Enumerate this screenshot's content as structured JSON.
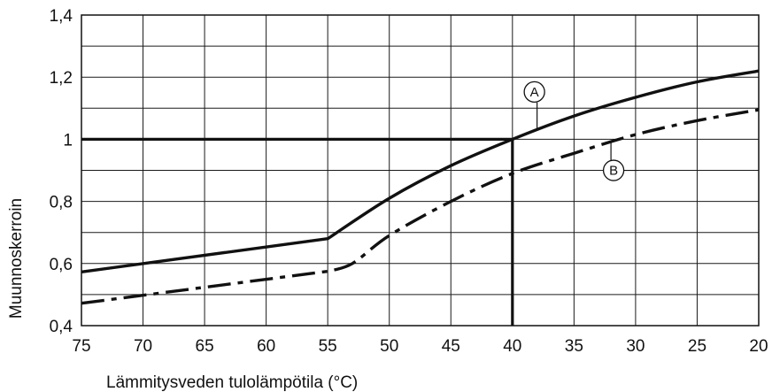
{
  "chart_data": {
    "type": "line",
    "xlabel": "Lämmitysveden tulolämpötila (°C)",
    "ylabel": "Muunnoskerroin",
    "xlim": [
      75,
      20
    ],
    "ylim": [
      0.4,
      1.4
    ],
    "x_ticks": [
      75,
      70,
      65,
      60,
      55,
      50,
      45,
      40,
      35,
      30,
      25,
      20
    ],
    "y_ticks": [
      0.4,
      0.6,
      0.8,
      1.0,
      1.2,
      1.4
    ],
    "x_tick_labels": [
      "75",
      "70",
      "65",
      "60",
      "55",
      "50",
      "45",
      "40",
      "35",
      "30",
      "25",
      "20"
    ],
    "y_tick_labels": [
      "0,4",
      "0,6",
      "0,8",
      "1",
      "1,2",
      "1,4"
    ],
    "grid": true,
    "series": [
      {
        "name": "A",
        "style": "solid",
        "x": [
          75,
          70,
          65,
          60,
          55,
          50,
          45,
          40,
          35,
          30,
          25,
          20
        ],
        "y": [
          0.573,
          0.6,
          0.627,
          0.654,
          0.68,
          0.81,
          0.915,
          1.0,
          1.075,
          1.135,
          1.185,
          1.22
        ]
      },
      {
        "name": "B",
        "style": "dashdot",
        "x": [
          75,
          70,
          65,
          60,
          55,
          53,
          50,
          45,
          40,
          35,
          30,
          25,
          20
        ],
        "y": [
          0.472,
          0.497,
          0.525,
          0.55,
          0.575,
          0.6,
          0.69,
          0.8,
          0.89,
          0.955,
          1.015,
          1.06,
          1.095
        ]
      }
    ],
    "reference_lines": [
      {
        "orientation": "horizontal",
        "y": 1.0,
        "x_from": 75,
        "x_to": 40
      },
      {
        "orientation": "vertical",
        "x": 40,
        "y_from": 0.4,
        "y_to": 1.0
      }
    ],
    "annotations": [
      {
        "label": "A",
        "series": "A",
        "at_x": 38
      },
      {
        "label": "B",
        "series": "B",
        "at_x": 32
      }
    ]
  }
}
